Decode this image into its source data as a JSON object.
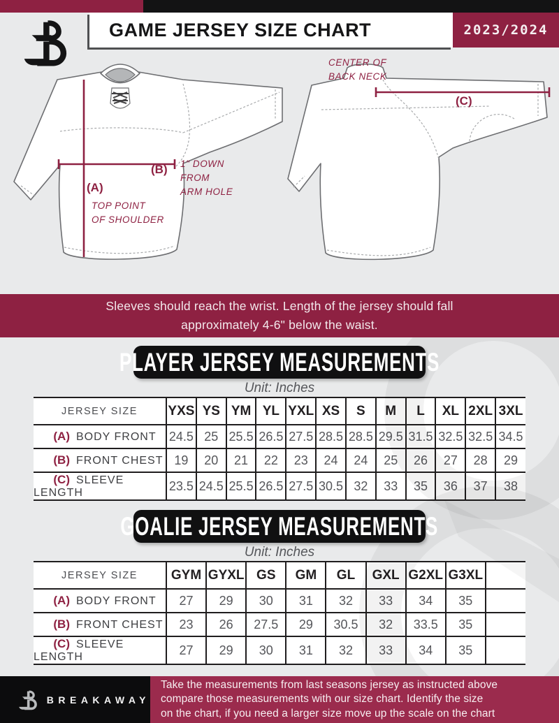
{
  "header": {
    "title": "GAME JERSEY SIZE CHART",
    "season": "2023/2024",
    "logo": "breakaway-b-logo"
  },
  "diagram": {
    "front": {
      "a_key": "(A)",
      "a_note": "TOP POINT\nOF SHOULDER",
      "b_key": "(B)",
      "b_note": "1\" DOWN\nFROM\nARM HOLE"
    },
    "back": {
      "c_key": "(C)",
      "c_note": "CENTER OF\nBACK NECK"
    }
  },
  "banner": {
    "line1": "Sleeves should reach the wrist. Length of the jersey should fall",
    "line2": "approximately 4-6\" below the waist."
  },
  "player_section": {
    "title": "PLAYER JERSEY MEASUREMENTS",
    "unit": "Unit: Inches",
    "table": {
      "corner_label": "JERSEY SIZE",
      "sizes": [
        "YXS",
        "YS",
        "YM",
        "YL",
        "YXL",
        "XS",
        "S",
        "M",
        "L",
        "XL",
        "2XL",
        "3XL"
      ],
      "rows": [
        {
          "key": "(A)",
          "label": "BODY FRONT",
          "values": [
            "24.5",
            "25",
            "25.5",
            "26.5",
            "27.5",
            "28.5",
            "28.5",
            "29.5",
            "31.5",
            "32.5",
            "32.5",
            "34.5"
          ]
        },
        {
          "key": "(B)",
          "label": "FRONT CHEST",
          "values": [
            "19",
            "20",
            "21",
            "22",
            "23",
            "24",
            "24",
            "25",
            "26",
            "27",
            "28",
            "29"
          ]
        },
        {
          "key": "(C)",
          "label": "SLEEVE LENGTH",
          "values": [
            "23.5",
            "24.5",
            "25.5",
            "26.5",
            "27.5",
            "30.5",
            "32",
            "33",
            "35",
            "36",
            "37",
            "38"
          ]
        }
      ]
    }
  },
  "goalie_section": {
    "title": "GOALIE JERSEY MEASUREMENTS",
    "unit": "Unit: Inches",
    "table": {
      "corner_label": "JERSEY SIZE",
      "sizes": [
        "GYM",
        "GYXL",
        "GS",
        "GM",
        "GL",
        "GXL",
        "G2XL",
        "G3XL",
        ""
      ],
      "rows": [
        {
          "key": "(A)",
          "label": "BODY FRONT",
          "values": [
            "27",
            "29",
            "30",
            "31",
            "32",
            "33",
            "34",
            "35",
            ""
          ]
        },
        {
          "key": "(B)",
          "label": "FRONT CHEST",
          "values": [
            "23",
            "26",
            "27.5",
            "29",
            "30.5",
            "32",
            "33.5",
            "35",
            ""
          ]
        },
        {
          "key": "(C)",
          "label": "SLEEVE LENGTH",
          "values": [
            "27",
            "29",
            "30",
            "31",
            "32",
            "33",
            "34",
            "35",
            ""
          ]
        }
      ]
    }
  },
  "footer": {
    "brand": "BREAKAWAY",
    "note": "Take the measurements from last seasons jersey as instructed above\ncompare those measurements  with our size chart. Identify the size\non the chart, if you need a larger size move up the scale on the chart"
  },
  "colors": {
    "maroon": "#8E2142",
    "footer_maroon": "#9B2B4D",
    "black": "#131314",
    "background": "#E9EAEB",
    "table_value_gray": "#55565A"
  }
}
